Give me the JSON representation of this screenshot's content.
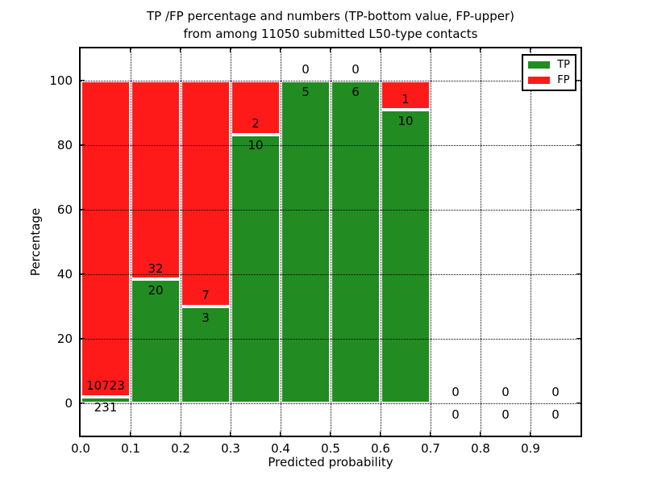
{
  "chart_data": {
    "type": "bar",
    "stacked": true,
    "normalized_to_percent": true,
    "title": "TP /FP percentage and numbers (TP-bottom value, FP-upper)\nfrom among 11050 submitted L50-type contacts",
    "xlabel": "Predicted probability",
    "ylabel": "Percentage",
    "total_contacts": 11050,
    "xlim": [
      0.0,
      1.0
    ],
    "ylim": [
      -10,
      110
    ],
    "grid": {
      "linestyle": "dotted",
      "color": "#000000"
    },
    "x_ticks": [
      {
        "value": 0.0,
        "label": "0.0"
      },
      {
        "value": 0.1,
        "label": "0.1"
      },
      {
        "value": 0.2,
        "label": "0.2"
      },
      {
        "value": 0.3,
        "label": "0.3"
      },
      {
        "value": 0.4,
        "label": "0.4"
      },
      {
        "value": 0.5,
        "label": "0.5"
      },
      {
        "value": 0.6,
        "label": "0.6"
      },
      {
        "value": 0.7,
        "label": "0.7"
      },
      {
        "value": 0.8,
        "label": "0.8"
      },
      {
        "value": 0.9,
        "label": "0.9"
      }
    ],
    "y_ticks": [
      0,
      20,
      40,
      60,
      80,
      100
    ],
    "categories": [
      "0.0-0.1",
      "0.1-0.2",
      "0.2-0.3",
      "0.3-0.4",
      "0.4-0.5",
      "0.5-0.6",
      "0.6-0.7",
      "0.7-0.8",
      "0.8-0.9",
      "0.9-1.0"
    ],
    "bins": [
      {
        "range": [
          0.0,
          0.1
        ],
        "tp": 231,
        "fp": 10723,
        "tp_pct": 2.11
      },
      {
        "range": [
          0.1,
          0.2
        ],
        "tp": 20,
        "fp": 32,
        "tp_pct": 38.46
      },
      {
        "range": [
          0.2,
          0.3
        ],
        "tp": 3,
        "fp": 7,
        "tp_pct": 30.0
      },
      {
        "range": [
          0.3,
          0.4
        ],
        "tp": 10,
        "fp": 2,
        "tp_pct": 83.33
      },
      {
        "range": [
          0.4,
          0.5
        ],
        "tp": 5,
        "fp": 0,
        "tp_pct": 100.0
      },
      {
        "range": [
          0.5,
          0.6
        ],
        "tp": 6,
        "fp": 0,
        "tp_pct": 100.0
      },
      {
        "range": [
          0.6,
          0.7
        ],
        "tp": 10,
        "fp": 1,
        "tp_pct": 90.91
      },
      {
        "range": [
          0.7,
          0.8
        ],
        "tp": 0,
        "fp": 0,
        "tp_pct": null
      },
      {
        "range": [
          0.8,
          0.9
        ],
        "tp": 0,
        "fp": 0,
        "tp_pct": null
      },
      {
        "range": [
          0.9,
          1.0
        ],
        "tp": 0,
        "fp": 0,
        "tp_pct": null
      }
    ],
    "legend": {
      "position": "upper right",
      "entries": [
        {
          "label": "TP",
          "color": "#228b22"
        },
        {
          "label": "FP",
          "color": "#ff1a1a"
        }
      ]
    },
    "colors": {
      "tp": "#228b22",
      "fp": "#ff1a1a",
      "bar_edge": "#ffffff",
      "grid": "#000000",
      "text": "#000000",
      "background": "#ffffff"
    }
  }
}
